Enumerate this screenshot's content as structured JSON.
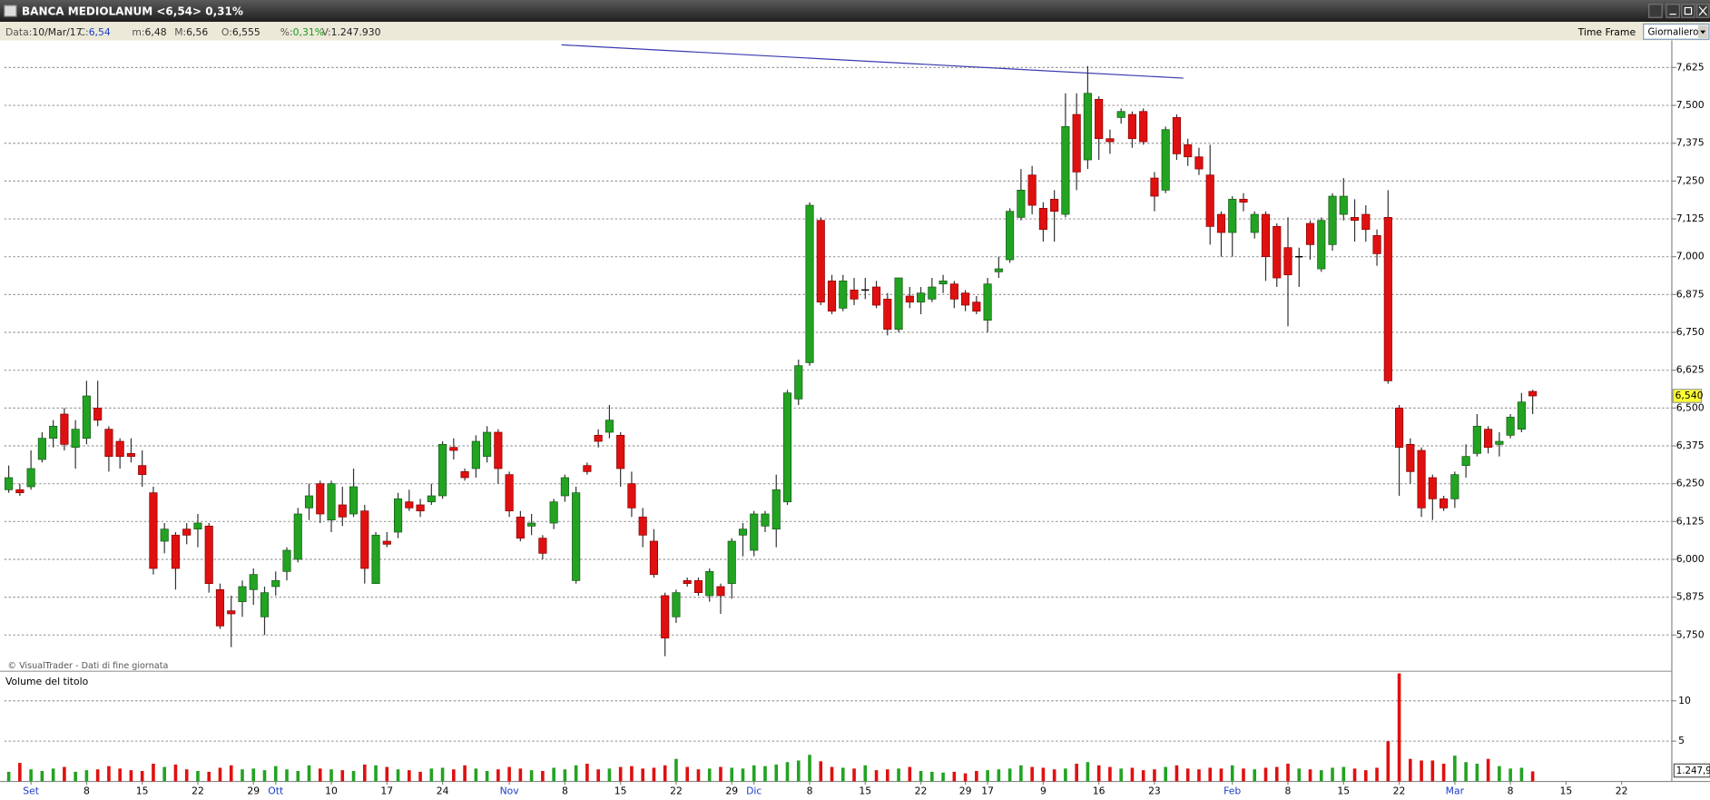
{
  "window": {
    "title": "BANCA MEDIOLANUM <6,54> 0,31%",
    "info": [
      {
        "label": "Data:",
        "value": "10/Mar/17"
      },
      {
        "label": "C:",
        "value": "6,54",
        "color": "#1a3cc8"
      },
      {
        "label": "m:",
        "value": "6,48"
      },
      {
        "label": "M:",
        "value": "6,56"
      },
      {
        "label": "O:",
        "value": "6,555"
      },
      {
        "label": "%:",
        "value": "0,31%",
        "color": "#1a9a1a"
      },
      {
        "label": "V:",
        "value": "1.247.930"
      }
    ],
    "time_frame_label": "Time Frame",
    "time_frame": "Giornaliero",
    "credit": "© VisualTrader - Dati di fine giornata"
  },
  "chart_data": [
    {
      "type": "candlestick",
      "up_color": "#22a322",
      "down_color": "#e01010",
      "month_label_color": "#1a3cc8",
      "grid": true,
      "categories": [
        null,
        null,
        "Set",
        null,
        null,
        null,
        null,
        "8",
        null,
        null,
        null,
        null,
        "15",
        null,
        null,
        null,
        null,
        "22",
        null,
        null,
        null,
        null,
        "29",
        null,
        "Ott",
        null,
        null,
        null,
        null,
        "10",
        null,
        null,
        null,
        null,
        "17",
        null,
        null,
        null,
        null,
        "24",
        null,
        null,
        null,
        null,
        null,
        "Nov",
        null,
        null,
        null,
        null,
        "8",
        null,
        null,
        null,
        null,
        "15",
        null,
        null,
        null,
        null,
        "22",
        null,
        null,
        null,
        null,
        "29",
        null,
        "Dic",
        null,
        null,
        null,
        null,
        "8",
        null,
        null,
        null,
        null,
        "15",
        null,
        null,
        null,
        null,
        "22",
        null,
        null,
        null,
        "29",
        null,
        "17",
        null,
        null,
        null,
        null,
        "9",
        null,
        null,
        null,
        null,
        "16",
        null,
        null,
        null,
        null,
        "23",
        null,
        null,
        null,
        null,
        null,
        null,
        "Feb",
        null,
        null,
        null,
        null,
        "8",
        null,
        null,
        null,
        null,
        "15",
        null,
        null,
        null,
        null,
        "22",
        null,
        null,
        null,
        null,
        "Mar",
        null,
        null,
        null,
        null,
        "8",
        null,
        null,
        null,
        null,
        "15",
        null,
        null,
        null,
        null,
        "22",
        null,
        null,
        null,
        null
      ],
      "open": [
        6.23,
        6.23,
        6.24,
        6.33,
        6.4,
        6.48,
        6.37,
        6.4,
        6.5,
        6.43,
        6.39,
        6.35,
        6.31,
        6.22,
        6.06,
        6.08,
        6.1,
        6.1,
        6.11,
        5.9,
        5.83,
        5.86,
        5.9,
        5.81,
        5.91,
        5.96,
        6.0,
        6.17,
        6.25,
        6.13,
        6.18,
        6.15,
        6.16,
        5.92,
        6.06,
        6.09,
        6.19,
        6.18,
        6.19,
        6.21,
        6.37,
        6.29,
        6.3,
        6.34,
        6.42,
        6.28,
        6.14,
        6.11,
        6.07,
        6.12,
        6.21,
        5.93,
        6.31,
        6.41,
        6.42,
        6.41,
        6.25,
        6.14,
        6.06,
        5.88,
        5.81,
        5.93,
        5.93,
        5.88,
        5.91,
        5.92,
        6.08,
        6.03,
        6.11,
        6.1,
        6.19,
        6.53,
        6.65,
        7.12,
        6.92,
        6.83,
        6.89,
        6.89,
        6.9,
        6.86,
        6.76,
        6.87,
        6.85,
        6.86,
        6.91,
        6.91,
        6.88,
        6.85,
        6.79,
        6.95,
        6.99,
        7.13,
        7.27,
        7.16,
        7.19,
        7.14,
        7.47,
        7.32,
        7.52,
        7.39,
        7.46,
        7.47,
        7.48,
        7.26,
        7.22,
        7.46,
        7.37,
        7.33,
        7.27,
        7.14,
        7.08,
        7.19,
        7.08,
        7.14,
        7.1,
        7.03,
        7.0,
        7.11,
        6.96,
        7.04,
        7.14,
        7.13,
        7.14,
        7.07,
        7.13,
        6.5,
        6.38,
        6.36,
        6.27,
        6.2,
        6.2,
        6.31,
        6.35,
        6.43,
        6.38,
        6.41,
        6.43,
        6.555,
        null,
        null,
        null,
        null,
        null,
        null,
        null,
        null,
        null,
        null,
        null,
        null
      ],
      "high": [
        6.31,
        6.25,
        6.36,
        6.42,
        6.46,
        6.5,
        6.46,
        6.59,
        6.59,
        6.44,
        6.4,
        6.4,
        6.36,
        6.24,
        6.12,
        6.09,
        6.12,
        6.15,
        6.12,
        5.92,
        5.88,
        5.93,
        5.97,
        5.91,
        5.96,
        6.04,
        6.17,
        6.25,
        6.26,
        6.26,
        6.24,
        6.3,
        6.18,
        6.09,
        6.09,
        6.22,
        6.23,
        6.2,
        6.25,
        6.39,
        6.4,
        6.3,
        6.41,
        6.44,
        6.43,
        6.29,
        6.16,
        6.15,
        6.08,
        6.2,
        6.28,
        6.24,
        6.32,
        6.43,
        6.51,
        6.42,
        6.29,
        6.17,
        6.1,
        5.89,
        5.9,
        5.94,
        5.94,
        5.97,
        5.92,
        6.07,
        6.12,
        6.16,
        6.16,
        6.28,
        6.56,
        6.66,
        7.18,
        7.13,
        6.94,
        6.94,
        6.93,
        6.93,
        6.92,
        6.88,
        6.93,
        6.9,
        6.9,
        6.93,
        6.94,
        6.92,
        6.89,
        6.87,
        6.93,
        7.0,
        7.16,
        7.29,
        7.3,
        7.18,
        7.22,
        7.54,
        7.54,
        7.63,
        7.53,
        7.42,
        7.49,
        7.48,
        7.49,
        7.28,
        7.43,
        7.47,
        7.39,
        7.36,
        7.37,
        7.15,
        7.2,
        7.21,
        7.15,
        7.15,
        7.11,
        7.13,
        7.03,
        7.12,
        7.13,
        7.21,
        7.26,
        7.19,
        7.17,
        7.09,
        7.22,
        6.51,
        6.4,
        6.37,
        6.28,
        6.21,
        6.29,
        6.38,
        6.48,
        6.44,
        6.42,
        6.48,
        6.55,
        6.56,
        null,
        null,
        null,
        null,
        null,
        null,
        null,
        null,
        null,
        null,
        null,
        null
      ],
      "low": [
        6.22,
        6.21,
        6.23,
        6.32,
        6.37,
        6.36,
        6.3,
        6.38,
        6.44,
        6.29,
        6.3,
        6.32,
        6.24,
        5.95,
        6.02,
        5.9,
        6.05,
        6.04,
        5.89,
        5.77,
        5.71,
        5.81,
        5.85,
        5.75,
        5.88,
        5.93,
        5.99,
        6.13,
        6.12,
        6.09,
        6.11,
        6.14,
        5.92,
        5.92,
        6.04,
        6.07,
        6.16,
        6.14,
        6.18,
        6.2,
        6.33,
        6.26,
        6.27,
        6.32,
        6.25,
        6.14,
        6.06,
        6.08,
        6.0,
        6.1,
        6.19,
        5.92,
        6.28,
        6.37,
        6.4,
        6.24,
        6.14,
        6.04,
        5.94,
        5.68,
        5.79,
        5.91,
        5.88,
        5.86,
        5.82,
        5.87,
        6.01,
        6.01,
        6.09,
        6.04,
        6.18,
        6.51,
        6.64,
        6.84,
        6.81,
        6.82,
        6.84,
        6.86,
        6.83,
        6.74,
        6.75,
        6.83,
        6.81,
        6.85,
        6.88,
        6.83,
        6.82,
        6.81,
        6.75,
        6.93,
        6.98,
        7.12,
        7.14,
        7.05,
        7.05,
        7.13,
        7.22,
        7.29,
        7.32,
        7.34,
        7.44,
        7.36,
        7.37,
        7.15,
        7.21,
        7.32,
        7.3,
        7.27,
        7.04,
        7.0,
        7.0,
        7.15,
        7.06,
        6.92,
        6.9,
        6.77,
        6.9,
        6.99,
        6.95,
        7.02,
        7.12,
        7.05,
        7.05,
        6.97,
        6.58,
        6.21,
        6.25,
        6.14,
        6.13,
        6.16,
        6.17,
        6.27,
        6.34,
        6.35,
        6.34,
        6.4,
        6.42,
        6.48,
        null,
        null,
        null,
        null,
        null,
        null,
        null,
        null,
        null,
        null,
        null,
        null
      ],
      "close": [
        6.27,
        6.22,
        6.3,
        6.4,
        6.44,
        6.38,
        6.43,
        6.54,
        6.46,
        6.34,
        6.34,
        6.34,
        6.28,
        5.97,
        6.1,
        5.97,
        6.08,
        6.12,
        5.92,
        5.78,
        5.82,
        5.91,
        5.95,
        5.89,
        5.93,
        6.03,
        6.15,
        6.21,
        6.15,
        6.25,
        6.14,
        6.24,
        5.97,
        6.08,
        6.05,
        6.2,
        6.17,
        6.16,
        6.21,
        6.38,
        6.36,
        6.27,
        6.39,
        6.42,
        6.3,
        6.16,
        6.07,
        6.12,
        6.02,
        6.19,
        6.27,
        6.22,
        6.29,
        6.39,
        6.46,
        6.3,
        6.17,
        6.08,
        5.95,
        5.74,
        5.89,
        5.92,
        5.89,
        5.96,
        5.88,
        6.06,
        6.1,
        6.15,
        6.15,
        6.23,
        6.55,
        6.64,
        7.17,
        6.85,
        6.82,
        6.92,
        6.86,
        6.89,
        6.84,
        6.76,
        6.93,
        6.85,
        6.88,
        6.9,
        6.92,
        6.86,
        6.84,
        6.82,
        6.91,
        6.96,
        7.15,
        7.22,
        7.17,
        7.09,
        7.15,
        7.43,
        7.28,
        7.54,
        7.39,
        7.38,
        7.48,
        7.39,
        7.38,
        7.2,
        7.42,
        7.34,
        7.33,
        7.29,
        7.1,
        7.08,
        7.19,
        7.18,
        7.14,
        7.0,
        6.93,
        6.94,
        7.0,
        7.04,
        7.12,
        7.2,
        7.2,
        7.12,
        7.09,
        7.01,
        6.59,
        6.37,
        6.29,
        6.17,
        6.2,
        6.17,
        6.28,
        6.34,
        6.44,
        6.37,
        6.39,
        6.47,
        6.52,
        6.54,
        null,
        null,
        null,
        null,
        null,
        null,
        null,
        null,
        null,
        null,
        null,
        null
      ],
      "ylim": [
        5.634,
        7.704
      ],
      "yticks": [
        {
          "value": 5.75,
          "label": "5,750"
        },
        {
          "value": 5.875,
          "label": "5,875"
        },
        {
          "value": 6.0,
          "label": "6,000"
        },
        {
          "value": 6.125,
          "label": "6,125"
        },
        {
          "value": 6.25,
          "label": "6,250"
        },
        {
          "value": 6.375,
          "label": "6,375"
        },
        {
          "value": 6.5,
          "label": "6,500"
        },
        {
          "value": 6.625,
          "label": "6,625"
        },
        {
          "value": 6.75,
          "label": "6,750"
        },
        {
          "value": 6.875,
          "label": "6,875"
        },
        {
          "value": 7.0,
          "label": "7,000"
        },
        {
          "value": 7.125,
          "label": "7,125"
        },
        {
          "value": 7.25,
          "label": "7,250"
        },
        {
          "value": 7.375,
          "label": "7,375"
        },
        {
          "value": 7.5,
          "label": "7,500"
        },
        {
          "value": 7.625,
          "label": "7,625"
        }
      ],
      "last_price": {
        "value": 6.54,
        "label": "6,540"
      },
      "trendline": {
        "x": [
          49.7,
          105.6
        ],
        "y": [
          7.7,
          7.59
        ],
        "color": "#3a3ab0"
      }
    },
    {
      "type": "bar",
      "title": "Volume del titolo",
      "up_color": "#22a322",
      "down_color": "#e01010",
      "values": [
        1.2,
        2.3,
        1.5,
        1.3,
        1.6,
        1.8,
        1.2,
        1.4,
        1.5,
        1.9,
        1.6,
        1.4,
        1.3,
        2.2,
        1.8,
        2.1,
        1.5,
        1.3,
        1.2,
        1.7,
        2.0,
        1.5,
        1.6,
        1.4,
        1.9,
        1.5,
        1.3,
        2.0,
        1.6,
        1.5,
        1.4,
        1.3,
        2.1,
        2.0,
        1.8,
        1.5,
        1.4,
        1.2,
        1.6,
        1.7,
        1.5,
        2.0,
        1.6,
        1.3,
        1.5,
        1.8,
        1.6,
        1.4,
        1.3,
        1.7,
        1.5,
        2.0,
        2.2,
        1.5,
        1.6,
        1.8,
        1.9,
        1.6,
        1.7,
        2.0,
        2.8,
        1.8,
        1.5,
        1.6,
        1.8,
        1.7,
        1.6,
        2.0,
        1.9,
        2.1,
        2.4,
        2.6,
        3.3,
        2.5,
        1.8,
        1.7,
        1.6,
        2.0,
        1.4,
        1.5,
        1.6,
        1.8,
        1.3,
        1.2,
        1.1,
        1.2,
        1.0,
        1.3,
        1.4,
        1.5,
        1.6,
        2.0,
        1.8,
        1.7,
        1.5,
        1.6,
        2.2,
        2.4,
        2.0,
        1.8,
        1.6,
        1.7,
        1.4,
        1.5,
        1.8,
        2.0,
        1.6,
        1.5,
        1.7,
        1.6,
        2.0,
        1.6,
        1.5,
        1.7,
        1.8,
        2.2,
        1.6,
        1.5,
        1.4,
        1.7,
        1.8,
        1.6,
        1.4,
        1.7,
        5.0,
        13.4,
        2.8,
        2.6,
        2.6,
        2.2,
        3.2,
        2.4,
        2.2,
        2.8,
        1.9,
        1.6,
        1.7,
        1.24793,
        null,
        null,
        null,
        null,
        null,
        null,
        null,
        null,
        null,
        null,
        null,
        null
      ],
      "value_labels": [
        null,
        null,
        null,
        null,
        null,
        null,
        null,
        null,
        null,
        null,
        null,
        null,
        null,
        null,
        null,
        null,
        null,
        null,
        null,
        null,
        null,
        null,
        null,
        null,
        null,
        null,
        null,
        null,
        null,
        null,
        null,
        null,
        null,
        null,
        null,
        null,
        null,
        null,
        null,
        null,
        null,
        null,
        null,
        null,
        null,
        null,
        null,
        null,
        null,
        null,
        null,
        null,
        null,
        null,
        null,
        null,
        null,
        null,
        null,
        null,
        null,
        null,
        null,
        null,
        null,
        null,
        null,
        null,
        null,
        null,
        null,
        null,
        null,
        null,
        null,
        null,
        null,
        null,
        null,
        null,
        null,
        null,
        null,
        null,
        null,
        null,
        null,
        null,
        null,
        null,
        null,
        null,
        null,
        null,
        null,
        null,
        null,
        null,
        null,
        null,
        null,
        null,
        null,
        null,
        null,
        null,
        null,
        null,
        null,
        null,
        null,
        null,
        null,
        null,
        null,
        null,
        null,
        null,
        null,
        null,
        null,
        null,
        null,
        null,
        null,
        null,
        null,
        null,
        null,
        null,
        null,
        null,
        null,
        null,
        null,
        null,
        null,
        "1.247,9",
        null,
        null,
        null,
        null,
        null,
        null,
        null,
        null,
        null,
        null,
        null,
        null
      ],
      "ylim": [
        0,
        13.4
      ],
      "yticks": [
        5,
        10
      ],
      "grid": true
    }
  ]
}
